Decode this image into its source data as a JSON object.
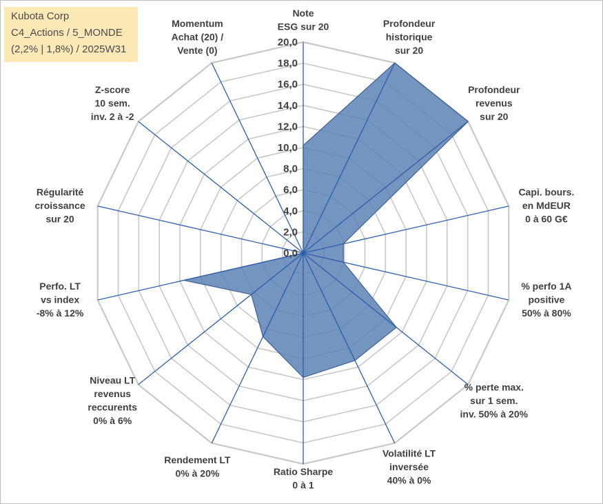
{
  "title": {
    "lines": [
      "Kubota Corp",
      "C4_Actions / 5_MONDE",
      "(2,2% | 1,8%) / 2025W31"
    ]
  },
  "colors": {
    "fill": "#5b82b5",
    "stroke": "#3f5f93",
    "spoke": "#2e5da8",
    "grid": "#c8c8c8",
    "title_bg": "#fde9b5"
  },
  "chart_data": {
    "type": "radar",
    "rmin": 0,
    "rmax": 20,
    "tick_step": 2,
    "tick_labels": [
      "0,0",
      "2,0",
      "4,0",
      "6,0",
      "8,0",
      "10,0",
      "12,0",
      "14,0",
      "16,0",
      "18,0",
      "20,0"
    ],
    "grid": true,
    "axes": [
      {
        "label_lines": [
          "Note",
          "ESG sur 20"
        ],
        "value": 10.2
      },
      {
        "label_lines": [
          "Profondeur",
          "historique",
          "sur 20"
        ],
        "value": 20.0
      },
      {
        "label_lines": [
          "Profondeur",
          "revenus",
          "sur 20"
        ],
        "value": 20.0
      },
      {
        "label_lines": [
          "Capi. bours.",
          "en MdEUR",
          "0 à 60 G€"
        ],
        "value": 3.9
      },
      {
        "label_lines": [
          "% perfo 1A",
          "positive",
          "50% à 80%"
        ],
        "value": 3.9
      },
      {
        "label_lines": [
          "% perte max.",
          "sur 1 sem.",
          "inv. 50% à 20%"
        ],
        "value": 11.3
      },
      {
        "label_lines": [
          "Volatilité LT",
          "inversée",
          "40% à 0%"
        ],
        "value": 11.3
      },
      {
        "label_lines": [
          "Ratio Sharpe",
          "0 à 1"
        ],
        "value": 11.8
      },
      {
        "label_lines": [
          "Rendement LT",
          "0% à 20%"
        ],
        "value": 8.8
      },
      {
        "label_lines": [
          "Niveau LT",
          "revenus",
          "reccurents",
          "0% à 6%"
        ],
        "value": 6.3
      },
      {
        "label_lines": [
          "Perfo. LT",
          "vs index",
          "-8% à 12%"
        ],
        "value": 11.6
      },
      {
        "label_lines": [
          "Régularité",
          "croissance",
          "sur 20"
        ],
        "value": 0.0
      },
      {
        "label_lines": [
          "Z-score",
          "10 sem.",
          "inv. 2 à -2"
        ],
        "value": 0.0
      },
      {
        "label_lines": [
          "Momentum",
          "Achat (20) /",
          "Vente (0)"
        ],
        "value": 0.0
      }
    ]
  }
}
